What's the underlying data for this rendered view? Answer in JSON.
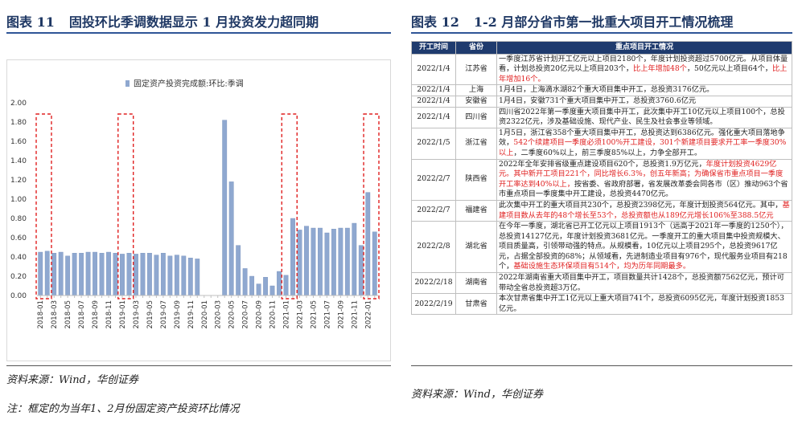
{
  "left": {
    "title_number": "图表 11",
    "title": "固投环比季调数据显示 1 月投资发力超同期",
    "chart_data": {
      "type": "bar",
      "categories": [
        "2018-01",
        null,
        "2018-03",
        null,
        "2018-05",
        null,
        "2018-07",
        null,
        "2018-09",
        null,
        "2018-11",
        null,
        "2019-01",
        null,
        "2019-03",
        null,
        "2019-05",
        null,
        "2019-07",
        null,
        "2019-09",
        null,
        "2019-11",
        null,
        "2020-01",
        null,
        "2020-03",
        null,
        "2020-05",
        null,
        "2020-07",
        null,
        "2020-09",
        null,
        "2020-11",
        null,
        "2021-01",
        null,
        "2021-03",
        null,
        "2021-05",
        null,
        "2021-07",
        null,
        "2021-09",
        null,
        "2021-11",
        null,
        "2022-01",
        null
      ],
      "series": [
        {
          "name": "固定资产投资完成额:环比:季调",
          "color": "#8fa8d0",
          "values": [
            0.45,
            0.46,
            0.44,
            0.45,
            0.41,
            0.44,
            0.44,
            0.45,
            0.45,
            0.44,
            0.45,
            0.44,
            0.43,
            0.44,
            0.43,
            0.44,
            0.44,
            0.42,
            0.44,
            0.41,
            0.42,
            0.41,
            0.39,
            0.38,
            null,
            null,
            null,
            1.82,
            1.18,
            0.52,
            0.28,
            0.2,
            0.12,
            0.19,
            0.1,
            0.25,
            0.21,
            0.8,
            0.68,
            0.72,
            0.7,
            0.7,
            0.65,
            0.69,
            0.7,
            0.7,
            0.75,
            0.52,
            1.07,
            0.66
          ]
        }
      ],
      "ylim": [
        0,
        2
      ],
      "yticks": [
        {
          "value": 0,
          "label": "0.00"
        },
        {
          "value": 0.2,
          "label": "0.20"
        },
        {
          "value": 0.4,
          "label": "0.40"
        },
        {
          "value": 0.6,
          "label": "0.60"
        },
        {
          "value": 0.8,
          "label": "0.80"
        },
        {
          "value": 1,
          "label": "1.00"
        },
        {
          "value": 1.2,
          "label": "1.20"
        },
        {
          "value": 1.4,
          "label": "1.40"
        },
        {
          "value": 1.6,
          "label": "1.60"
        },
        {
          "value": 1.8,
          "label": "1.80"
        },
        {
          "value": 2,
          "label": "2.00"
        }
      ],
      "legend": "top"
    },
    "source": "资料来源：Wind，华创证券",
    "note": "注：框定的为当年1、2月份固定资产投资环比情况"
  },
  "right": {
    "title_number": "图表 12",
    "title": "1-2 月部分省市第一批重大项目开工情况梳理",
    "table": {
      "header": [
        "开工时间",
        "省份",
        "重点项目开工情况"
      ],
      "rows": [
        [
          "2022/1/4",
          "江苏省",
          [
            {
              "text": "一季度江苏省计划开工亿元以上项目2180个，年度计划投资超过5700亿元。从项目体量看，计划总投资20亿元以上项目203个，",
              "color": "#222222"
            },
            {
              "text": "比上年增加48个",
              "color": "#e02020"
            },
            {
              "text": "，50亿元以上项目64个，",
              "color": "#222222"
            },
            {
              "text": "比上年增加16个。",
              "color": "#e02020"
            }
          ]
        ],
        [
          "2022/1/4",
          "上海",
          [
            {
              "text": "1月4日，上海滴水湖82个重大项目集中开工，总投资3176亿元。",
              "color": "#222222"
            }
          ]
        ],
        [
          "2022/1/4",
          "安徽省",
          [
            {
              "text": "1月4日，安徽731个重大项目集中开工，总投资3760.6亿元",
              "color": "#222222"
            }
          ]
        ],
        [
          "2022/1/4",
          "四川省",
          [
            {
              "text": "四川省2022年第一季度重大项目集中开工，此次集中开工10亿元以上项目100个，总投资2322亿元，涉及基础设施、现代产业、民生及社会事业等领域。",
              "color": "#222222"
            }
          ]
        ],
        [
          "2022/1/5",
          "浙江省",
          [
            {
              "text": "1月5日，浙江省358个重大项目集中开工，总投资达到6386亿元。强化重大项目落地争效，",
              "color": "#222222"
            },
            {
              "text": "542个续建项目一季度必须100%开工建设，301个新建项目要求开工率一季度30%以上",
              "color": "#e02020"
            },
            {
              "text": "，二季度60%以上，前三季度85%以上，力争全部开工。",
              "color": "#222222"
            }
          ]
        ],
        [
          "2022/2/7",
          "陕西省",
          [
            {
              "text": "2022年全年安排省级重点建设项目620个，总投资1.9万亿元，",
              "color": "#222222"
            },
            {
              "text": "年度计划投资4629亿元。其中新开工项目221个，同比增长6.3%，创五年新高；为确保省市重点项目一季度开工率达到40%以上，",
              "color": "#e02020"
            },
            {
              "text": "按省委、省政府部署，省发展改革委会同各市（区）推动963个省市重点项目一季度集中开工建设，总投资4470亿元。",
              "color": "#222222"
            }
          ]
        ],
        [
          "2022/2/7",
          "福建省",
          [
            {
              "text": "此次集中开工的重大项目共230个，总投资2398亿元，年度计划投资564亿元。其中，",
              "color": "#222222"
            },
            {
              "text": "基建项目数从去年的48个增长至53个，总投资额也从189亿元增长106%至388.5亿元",
              "color": "#e02020"
            }
          ]
        ],
        [
          "2022/2/8",
          "湖北省",
          [
            {
              "text": "在今年一季度，湖北省已开工亿元以上项目1913个（远高于2021年一季度的1250个），总投资14127亿元，年度计划投资3681亿元。一季度开工的重大项目集中投资规模大、项目质量高，引领带动强的特点。从规模看，10亿元以上项目295个，总投资9617亿元，占据全部投资的68%；从领域看，先进制造业项目有976个，现代服务业项目有218个，",
              "color": "#222222"
            },
            {
              "text": "基础设施生态环保项目有514个，均为历年同期最多。",
              "color": "#e02020"
            }
          ]
        ],
        [
          "2022/2/18",
          "湖南省",
          [
            {
              "text": "2022年湖南省重大项目集中开工，项目数量共计1428个，总投资额7562亿元，预计可带动全省总投资超3万亿。",
              "color": "#222222"
            }
          ]
        ],
        [
          "2022/2/19",
          "甘肃省",
          [
            {
              "text": "本次甘肃省集中开工1亿元以上重大项目741个，总投资6095亿元，年度计划投资1853亿元。",
              "color": "#222222"
            }
          ]
        ]
      ]
    },
    "source": "资料来源：Wind，华创证券"
  }
}
